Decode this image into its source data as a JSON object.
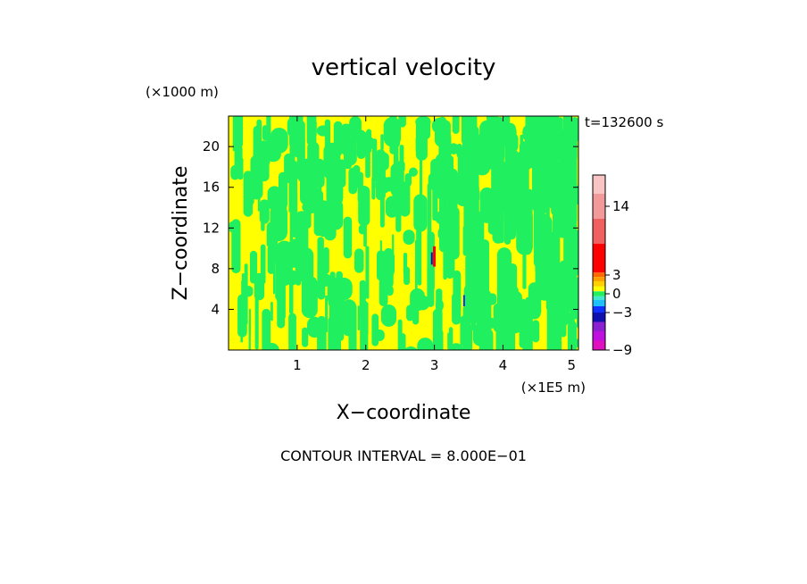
{
  "chart_data": {
    "type": "heatmap",
    "title": "vertical velocity",
    "time_label": "t=132600 s",
    "xlabel": "X−coordinate",
    "ylabel": "Z−coordinate",
    "x_unit": "(×1E5 m)",
    "y_unit": "(×1000 m)",
    "xlim": [
      0,
      5.1
    ],
    "ylim": [
      0,
      23
    ],
    "x_ticks": [
      "1",
      "2",
      "3",
      "4",
      "5"
    ],
    "y_ticks": [
      "4",
      "8",
      "12",
      "16",
      "20"
    ],
    "footer": "CONTOUR INTERVAL = 8.000E−01",
    "colorbar": {
      "range": [
        -9,
        19
      ],
      "tick_labels": [
        {
          "value": 14,
          "label": "14"
        },
        {
          "value": 3,
          "label": "3"
        },
        {
          "value": 0,
          "label": "0"
        },
        {
          "value": -3,
          "label": "−3"
        },
        {
          "value": -9,
          "label": "−9"
        }
      ],
      "levels": [
        {
          "from": -9,
          "to": -7.5,
          "color": "#e010c0"
        },
        {
          "from": -7.5,
          "to": -6,
          "color": "#c010e0"
        },
        {
          "from": -6,
          "to": -4.5,
          "color": "#8a20d0"
        },
        {
          "from": -4.5,
          "to": -3,
          "color": "#1010b0"
        },
        {
          "from": -3,
          "to": -2,
          "color": "#1030ff"
        },
        {
          "from": -2,
          "to": -1,
          "color": "#20c0ff"
        },
        {
          "from": -1,
          "to": -0.4,
          "color": "#40e8d0"
        },
        {
          "from": -0.4,
          "to": 0.4,
          "color": "#20f060"
        },
        {
          "from": 0.4,
          "to": 1.2,
          "color": "#ffff00"
        },
        {
          "from": 1.2,
          "to": 2,
          "color": "#ffd000"
        },
        {
          "from": 2,
          "to": 2.7,
          "color": "#ffa000"
        },
        {
          "from": 2.7,
          "to": 3.4,
          "color": "#ff6a00"
        },
        {
          "from": 3.4,
          "to": 8,
          "color": "#ff0000"
        },
        {
          "from": 8,
          "to": 12,
          "color": "#f06060"
        },
        {
          "from": 12,
          "to": 16,
          "color": "#f29a9a"
        },
        {
          "from": 16,
          "to": 19,
          "color": "#f8c4c4"
        }
      ]
    },
    "field_colors": {
      "background": "#ffff00",
      "main": "#20f060"
    }
  }
}
